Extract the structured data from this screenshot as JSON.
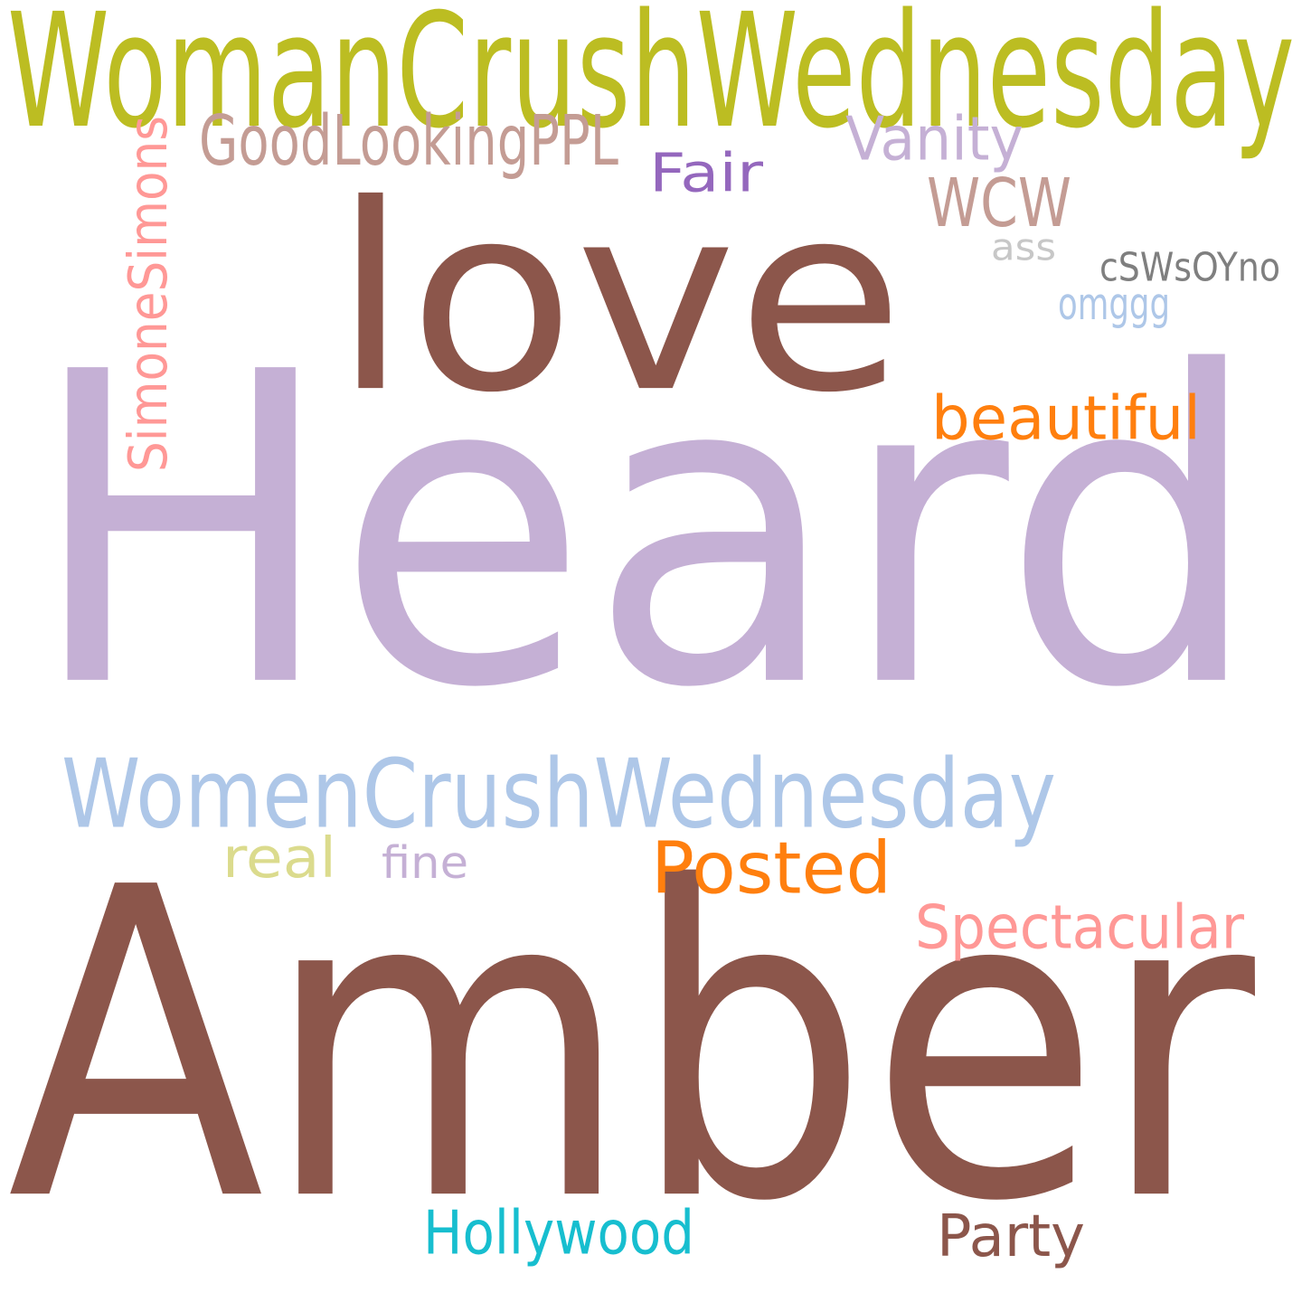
{
  "words": [
    {
      "text": "Heard",
      "color": "#c5b0d5"
    },
    {
      "text": "Amber",
      "color": "#8c564b"
    },
    {
      "text": "love",
      "color": "#8c564b"
    },
    {
      "text": "WomanCrushWednesday",
      "color": "#bcbd22"
    },
    {
      "text": "WomenCrushWednesday",
      "color": "#aec7e8"
    },
    {
      "text": "Posted",
      "color": "#ff7f0e"
    },
    {
      "text": "SimoneSimons",
      "color": "#ff9896"
    },
    {
      "text": "GoodLookingPPL",
      "color": "#c49c94"
    },
    {
      "text": "WCW",
      "color": "#c49c94"
    },
    {
      "text": "Vanity",
      "color": "#c5b0d5"
    },
    {
      "text": "Fair",
      "color": "#9467bd"
    },
    {
      "text": "beautiful",
      "color": "#ff7f0e"
    },
    {
      "text": "Spectacular",
      "color": "#ff9896"
    },
    {
      "text": "Hollywood",
      "color": "#17becf"
    },
    {
      "text": "Party",
      "color": "#8c564b"
    },
    {
      "text": "real",
      "color": "#dbdb8d"
    },
    {
      "text": "fine",
      "color": "#c5b0d5"
    },
    {
      "text": "cSWsOYno",
      "color": "#7f7f7f"
    },
    {
      "text": "ass",
      "color": "#c7c7c7"
    },
    {
      "text": "omggg",
      "color": "#aec7e8"
    }
  ]
}
